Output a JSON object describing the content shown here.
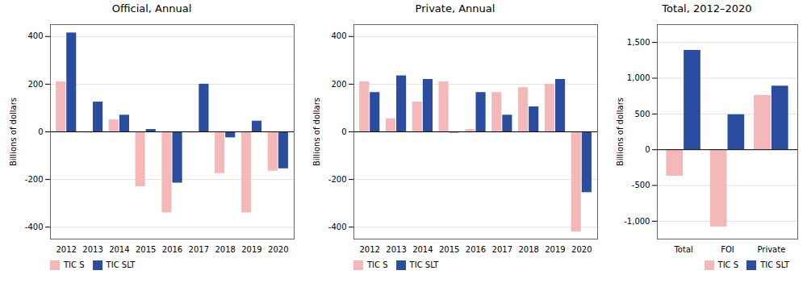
{
  "chart_data": [
    {
      "type": "bar",
      "title": "Official, Annual",
      "categories": [
        "2012",
        "2013",
        "2014",
        "2015",
        "2016",
        "2017",
        "2018",
        "2019",
        "2020"
      ],
      "series": [
        {
          "name": "TIC S",
          "color": "#f4b8b8",
          "values": [
            210,
            -5,
            50,
            -230,
            -340,
            -5,
            -175,
            -340,
            -165
          ]
        },
        {
          "name": "TIC SLT",
          "color": "#2b4da0",
          "values": [
            415,
            125,
            70,
            10,
            -215,
            200,
            -25,
            45,
            -155
          ]
        }
      ],
      "ylabel": "Billions of dollars",
      "ylim": [
        -450,
        450
      ],
      "yticks": [
        -400,
        -200,
        0,
        200,
        400
      ],
      "grid": true,
      "legend": "lower left"
    },
    {
      "type": "bar",
      "title": "Private, Annual",
      "categories": [
        "2012",
        "2013",
        "2014",
        "2015",
        "2016",
        "2017",
        "2018",
        "2019",
        "2020"
      ],
      "series": [
        {
          "name": "TIC S",
          "color": "#f4b8b8",
          "values": [
            210,
            55,
            125,
            210,
            10,
            165,
            185,
            200,
            -420
          ]
        },
        {
          "name": "TIC SLT",
          "color": "#2b4da0",
          "values": [
            165,
            235,
            220,
            -5,
            165,
            70,
            105,
            220,
            -255
          ]
        }
      ],
      "ylabel": "Billions of dollars",
      "ylim": [
        -450,
        450
      ],
      "yticks": [
        -400,
        -200,
        0,
        200,
        400
      ],
      "grid": true,
      "legend": "lower left"
    },
    {
      "type": "bar",
      "title": "Total, 2012–2020",
      "categories": [
        "Total",
        "FOI",
        "Private"
      ],
      "series": [
        {
          "name": "TIC S",
          "color": "#f4b8b8",
          "values": [
            -370,
            -1080,
            760
          ]
        },
        {
          "name": "TIC SLT",
          "color": "#2b4da0",
          "values": [
            1390,
            490,
            890
          ]
        }
      ],
      "ylabel": "Billions of dollars",
      "ylim": [
        -1250,
        1750
      ],
      "yticks": [
        {
          "value": -1000,
          "label": "-1,000"
        },
        -500,
        0,
        500,
        {
          "value": 1000,
          "label": "1,000"
        },
        {
          "value": 1500,
          "label": "1,500"
        }
      ],
      "grid": true,
      "legend": "lower right"
    }
  ]
}
